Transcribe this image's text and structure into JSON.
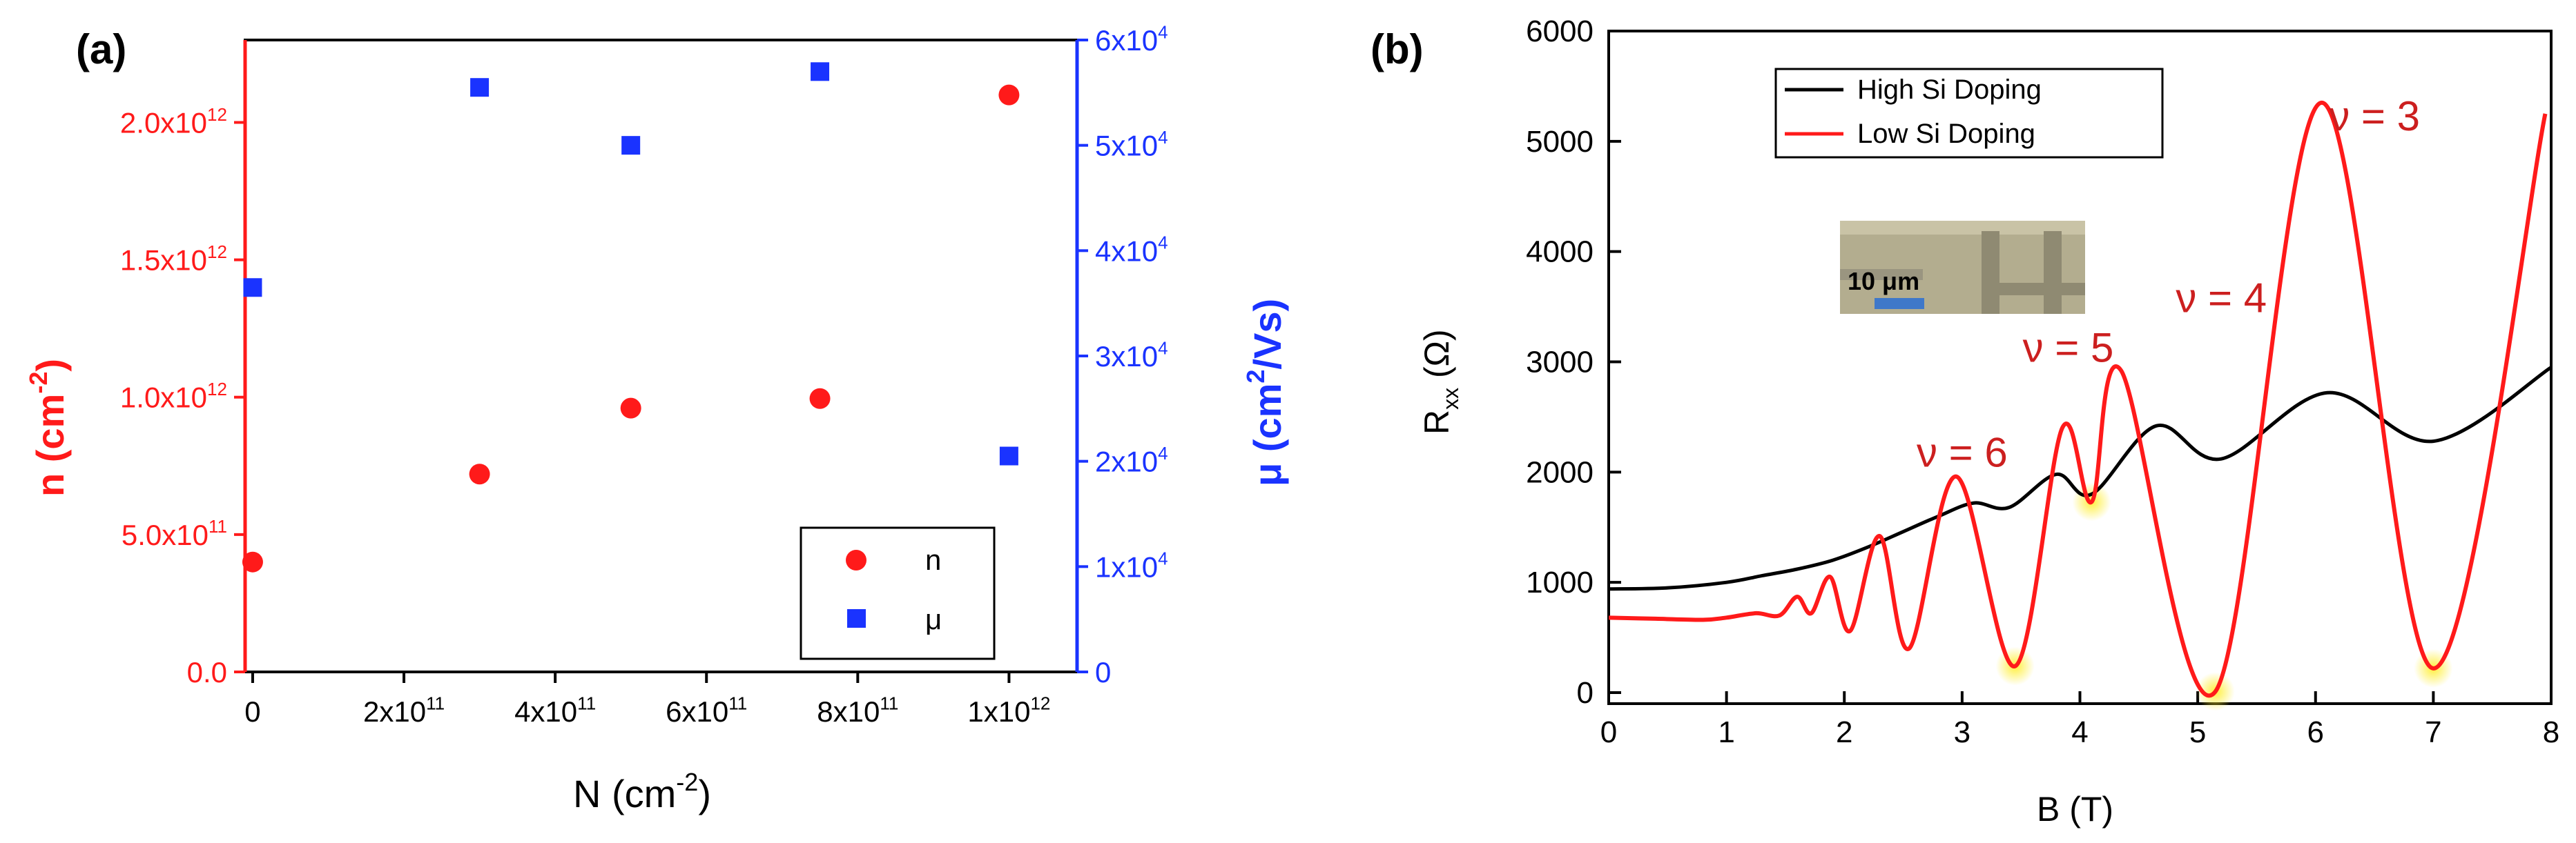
{
  "chart_data": [
    {
      "panel": "(a)",
      "type": "scatter",
      "xlabel": "N (cm",
      "xlabel_sup": "-2",
      "xlabel_end": ")",
      "ylabel_left": "n (cm",
      "ylabel_left_sup": "-2",
      "ylabel_left_end": ")",
      "ylabel_right": "μ (cm",
      "ylabel_right_sup": "2",
      "ylabel_right_end": "/Vs)",
      "xlim": [
        -10000000000.0,
        1090000000000.0
      ],
      "ylim_left": [
        0,
        2300000000000.0
      ],
      "ylim_right": [
        0,
        60000.0
      ],
      "x_ticks": [
        {
          "value": 0,
          "base": "0",
          "exp": ""
        },
        {
          "value": 200000000000.0,
          "base": "2x10",
          "exp": "11"
        },
        {
          "value": 400000000000.0,
          "base": "4x10",
          "exp": "11"
        },
        {
          "value": 600000000000.0,
          "base": "6x10",
          "exp": "11"
        },
        {
          "value": 800000000000.0,
          "base": "8x10",
          "exp": "11"
        },
        {
          "value": 1000000000000.0,
          "base": "1x10",
          "exp": "12"
        }
      ],
      "y_left_ticks": [
        {
          "value": 0,
          "base": "0.0",
          "exp": ""
        },
        {
          "value": 500000000000.0,
          "base": "5.0x10",
          "exp": "11"
        },
        {
          "value": 1000000000000.0,
          "base": "1.0x10",
          "exp": "12"
        },
        {
          "value": 1500000000000.0,
          "base": "1.5x10",
          "exp": "12"
        },
        {
          "value": 2000000000000.0,
          "base": "2.0x10",
          "exp": "12"
        }
      ],
      "y_right_ticks": [
        {
          "value": 0,
          "base": "0",
          "exp": ""
        },
        {
          "value": 10000.0,
          "base": "1x10",
          "exp": "4"
        },
        {
          "value": 20000.0,
          "base": "2x10",
          "exp": "4"
        },
        {
          "value": 30000.0,
          "base": "3x10",
          "exp": "4"
        },
        {
          "value": 40000.0,
          "base": "4x10",
          "exp": "4"
        },
        {
          "value": 50000.0,
          "base": "5x10",
          "exp": "4"
        },
        {
          "value": 60000.0,
          "base": "6x10",
          "exp": "4"
        }
      ],
      "series": [
        {
          "name": "n",
          "axis": "left",
          "marker": "circle",
          "color": "#ff1a1a",
          "x": [
            0,
            300000000000.0,
            500000000000.0,
            750000000000.0,
            1000000000000.0
          ],
          "y": [
            400000000000.0,
            720000000000.0,
            960000000000.0,
            995000000000.0,
            2100000000000.0
          ]
        },
        {
          "name": "μ",
          "axis": "right",
          "marker": "square",
          "color": "#1a33ff",
          "x": [
            0,
            300000000000.0,
            500000000000.0,
            750000000000.0,
            1000000000000.0
          ],
          "y": [
            36500,
            55500,
            50000,
            57000,
            20500
          ]
        }
      ],
      "legend_position": "bottom-right"
    },
    {
      "panel": "(b)",
      "type": "line",
      "xlabel": "B (T)",
      "ylabel": "R",
      "ylabel_sub": "xx",
      "ylabel_end": " (Ω)",
      "xlim": [
        0,
        8
      ],
      "ylim": [
        -100,
        6000
      ],
      "x_ticks": [
        0,
        1,
        2,
        3,
        4,
        5,
        6,
        7,
        8
      ],
      "y_ticks": [
        0,
        1000,
        2000,
        3000,
        4000,
        5000,
        6000
      ],
      "legend_position": "top-left",
      "series": [
        {
          "name": "High Si Doping",
          "color": "#000000",
          "x": [
            0,
            0.5,
            1.0,
            1.3,
            1.6,
            1.9,
            2.2,
            2.5,
            2.8,
            3.1,
            3.4,
            3.8,
            4.1,
            4.65,
            5.2,
            6.1,
            7.0,
            8.0
          ],
          "y": [
            940,
            950,
            1000,
            1060,
            1120,
            1200,
            1320,
            1460,
            1600,
            1720,
            1680,
            1980,
            1800,
            2420,
            2120,
            2720,
            2280,
            2950
          ]
        },
        {
          "name": "Low Si Doping",
          "color": "#ff1a1a",
          "x": [
            0,
            0.4,
            0.8,
            1.0,
            1.25,
            1.45,
            1.6,
            1.72,
            1.88,
            2.05,
            2.3,
            2.55,
            2.95,
            3.45,
            3.85,
            4.1,
            4.35,
            5.15,
            6.05,
            7.0,
            7.95
          ],
          "y": [
            680,
            670,
            660,
            680,
            720,
            700,
            870,
            720,
            1050,
            560,
            1420,
            400,
            1960,
            240,
            2400,
            1730,
            2920,
            10,
            5350,
            220,
            5250
          ]
        }
      ],
      "annotations": [
        {
          "text": "ν = 6",
          "x": 3.0,
          "y": 2050
        },
        {
          "text": "ν = 5",
          "x": 3.9,
          "y": 3000
        },
        {
          "text": "ν = 4",
          "x": 5.2,
          "y": 3450
        },
        {
          "text": "ν = 3",
          "x": 6.5,
          "y": 5100
        }
      ],
      "highlight_minima": [
        {
          "x": 3.45,
          "y": 240
        },
        {
          "x": 4.1,
          "y": 1730
        },
        {
          "x": 5.15,
          "y": 10
        },
        {
          "x": 7.0,
          "y": 220
        }
      ],
      "inset": {
        "scale_label": "10 μm"
      }
    }
  ],
  "colors": {
    "left_axis": "#ff1a1a",
    "right_axis": "#1a33ff",
    "annotation": "#cc1f1f",
    "highlight": "#ffee33"
  }
}
